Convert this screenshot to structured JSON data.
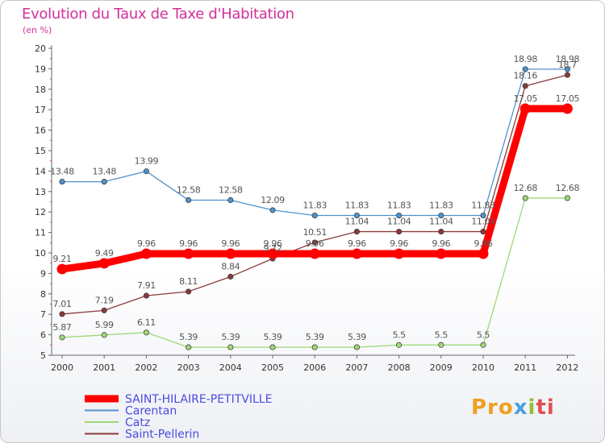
{
  "title": "Evolution du Taux de Taxe d'Habitation",
  "subtitle": "(en %)",
  "logo_text": "Proxiti",
  "chart_data": {
    "type": "line",
    "title": "Evolution du Taux de Taxe d'Habitation",
    "ylabel": "(en %)",
    "ylim": [
      5,
      20
    ],
    "yticks": [
      "5",
      "6",
      "7",
      "8",
      "9",
      "10",
      "11",
      "12",
      "13",
      "14",
      "15",
      "16",
      "17",
      "18",
      "19",
      "20"
    ],
    "categories": [
      "2000",
      "2001",
      "2002",
      "2003",
      "2004",
      "2005",
      "2006",
      "2007",
      "2008",
      "2009",
      "2010",
      "2011",
      "2012"
    ],
    "legend_position": "bottom-left",
    "series": [
      {
        "name": "SAINT-HILAIRE-PETITVILLE",
        "color": "#ff0000",
        "values": [
          9.21,
          9.49,
          9.96,
          9.96,
          9.96,
          9.96,
          9.96,
          9.96,
          9.96,
          9.96,
          9.96,
          17.05,
          17.05
        ],
        "labels": [
          "9.21",
          "9.49",
          "9.96",
          "9.96",
          "9.96",
          "9.96",
          "9.96",
          "9.96",
          "9.96",
          "9.96",
          "9.96",
          "17.05",
          "17.05"
        ]
      },
      {
        "name": "Carentan",
        "color": "#4f92cc",
        "values": [
          13.48,
          13.48,
          13.99,
          12.58,
          12.58,
          12.09,
          11.83,
          11.83,
          11.83,
          11.83,
          11.83,
          18.98,
          18.98
        ],
        "labels": [
          "13.48",
          "13.48",
          "13.99",
          "12.58",
          "12.58",
          "12.09",
          "11.83",
          "11.83",
          "11.83",
          "11.83",
          "11.83",
          "18.98",
          "18.98"
        ]
      },
      {
        "name": "Catz",
        "color": "#9ed878",
        "values": [
          5.87,
          5.99,
          6.11,
          5.39,
          5.39,
          5.39,
          5.39,
          5.39,
          5.5,
          5.5,
          5.5,
          12.68,
          12.68
        ],
        "labels": [
          "5.87",
          "5.99",
          "6.11",
          "5.39",
          "5.39",
          "5.39",
          "5.39",
          "5.39",
          "5.5",
          "5.5",
          "5.5",
          "12.68",
          "12.68"
        ]
      },
      {
        "name": "Saint-Pellerin",
        "color": "#8b3a3a",
        "values": [
          7.01,
          7.19,
          7.91,
          8.11,
          8.84,
          9.72,
          10.51,
          11.04,
          11.04,
          11.04,
          11.04,
          18.16,
          18.7
        ],
        "labels": [
          "7.01",
          "7.19",
          "7.91",
          "8.11",
          "8.84",
          "9.72",
          "10.51",
          "11.04",
          "11.04",
          "11.04",
          "11.04",
          "18.16",
          "18.7"
        ]
      }
    ]
  }
}
